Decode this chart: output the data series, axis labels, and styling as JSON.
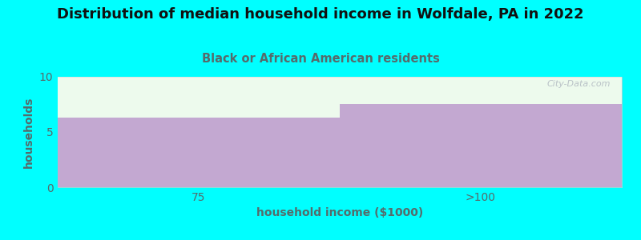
{
  "title": "Distribution of median household income in Wolfdale, PA in 2022",
  "subtitle": "Black or African American residents",
  "xlabel": "household income ($1000)",
  "ylabel": "households",
  "background_color": "#00ffff",
  "plot_bg_color": "#edfaed",
  "bar_color": "#c3a8d1",
  "categories": [
    "75",
    ">100"
  ],
  "values": [
    6.3,
    7.5
  ],
  "ylim": [
    0,
    10
  ],
  "yticks": [
    0,
    5,
    10
  ],
  "title_fontsize": 13,
  "subtitle_fontsize": 10.5,
  "subtitle_color": "#556b6b",
  "ylabel_color": "#556b6b",
  "xlabel_color": "#556b6b",
  "tick_color": "#556b6b",
  "watermark": "City-Data.com"
}
